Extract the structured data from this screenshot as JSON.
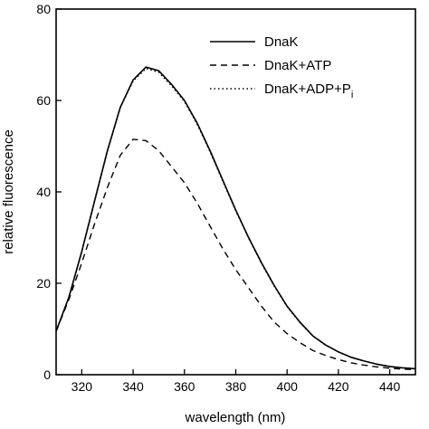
{
  "chart_data": {
    "type": "line",
    "xlabel": "wavelength (nm)",
    "ylabel": "relative fluorescence",
    "xlim": [
      310,
      450
    ],
    "ylim": [
      0,
      80
    ],
    "xticks": [
      320,
      340,
      360,
      380,
      400,
      420,
      440
    ],
    "yticks": [
      0,
      20,
      40,
      60,
      80
    ],
    "grid": false,
    "legend_position": "top-right",
    "series": [
      {
        "name": "DnaK",
        "legend_label": "DnaK",
        "legend_subscript": "",
        "dash": "solid",
        "x": [
          310,
          315,
          320,
          325,
          330,
          335,
          340,
          345,
          350,
          355,
          360,
          365,
          370,
          375,
          380,
          385,
          390,
          395,
          400,
          405,
          410,
          415,
          420,
          425,
          430,
          435,
          440,
          445,
          450
        ],
        "y": [
          9.5,
          17,
          27,
          38,
          49,
          58.5,
          64.5,
          67.3,
          66.5,
          63.5,
          60,
          55,
          49,
          42.5,
          36,
          30,
          24.5,
          19.5,
          15,
          11.5,
          8.5,
          6.5,
          5,
          3.8,
          3,
          2.3,
          1.8,
          1.5,
          1.3
        ]
      },
      {
        "name": "DnaK+ATP",
        "legend_label": "DnaK+ATP",
        "legend_subscript": "",
        "dash": "dashed",
        "x": [
          310,
          315,
          320,
          325,
          330,
          335,
          340,
          345,
          350,
          355,
          360,
          365,
          370,
          375,
          380,
          385,
          390,
          395,
          400,
          405,
          410,
          415,
          420,
          425,
          430,
          435,
          440,
          445,
          450
        ],
        "y": [
          9.5,
          16.5,
          24.5,
          33,
          41,
          48,
          51.5,
          51.2,
          49,
          45.5,
          42,
          37.5,
          32.5,
          27.5,
          23,
          19,
          15,
          11.5,
          9,
          7,
          5.3,
          4.2,
          3.3,
          2.6,
          2.1,
          1.7,
          1.4,
          1.2,
          1.1
        ]
      },
      {
        "name": "DnaK+ADP+Pi",
        "legend_label": "DnaK+ADP+P",
        "legend_subscript": "i",
        "dash": "dotted",
        "x": [
          310,
          315,
          320,
          325,
          330,
          335,
          340,
          345,
          350,
          355,
          360,
          365,
          370,
          375,
          380,
          385,
          390,
          395,
          400,
          405,
          410,
          415,
          420,
          425,
          430,
          435,
          440,
          445,
          450
        ],
        "y": [
          9.5,
          17,
          27,
          38,
          49,
          58.5,
          64.3,
          67,
          66.2,
          63.2,
          59.8,
          54.8,
          48.8,
          42.3,
          35.9,
          29.9,
          24.4,
          19.4,
          14.9,
          11.4,
          8.5,
          6.5,
          5,
          3.8,
          3,
          2.3,
          1.8,
          1.5,
          1.3
        ]
      }
    ]
  }
}
